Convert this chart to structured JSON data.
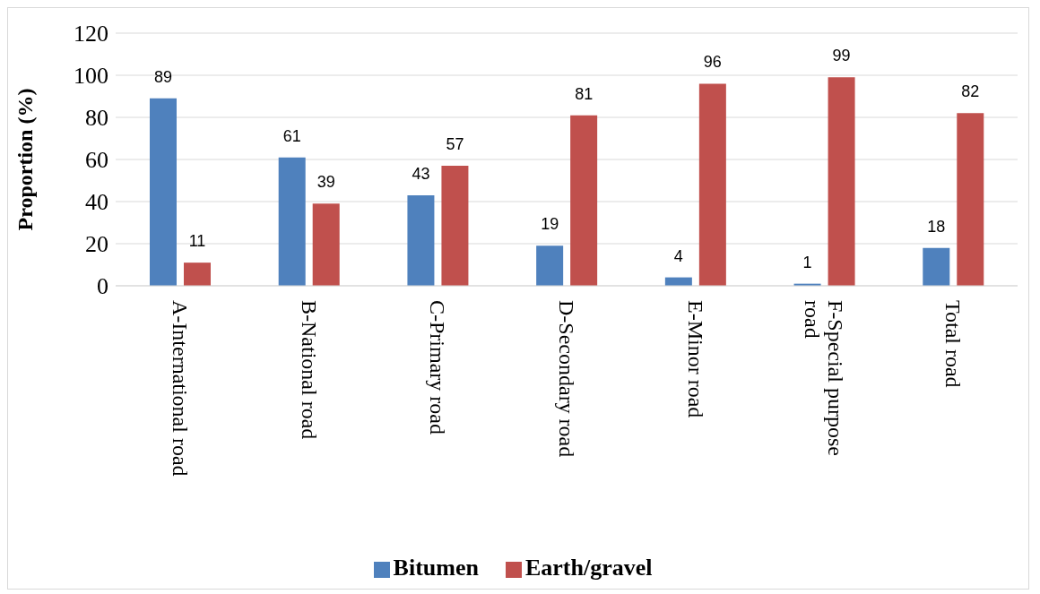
{
  "chart_data": {
    "type": "bar",
    "ylabel": "Proportion (%)",
    "categories": [
      "A-International road",
      "B-National road",
      "C-Primary road",
      "D-Secondary road",
      "E-Minor road",
      "F-Special purpose road",
      "Total road"
    ],
    "series": [
      {
        "name": "Bitumen",
        "color": "#4f81bd",
        "values": [
          89,
          61,
          43,
          19,
          4,
          1,
          18
        ]
      },
      {
        "name": "Earth/gravel",
        "color": "#c0504d",
        "values": [
          11,
          39,
          57,
          81,
          96,
          99,
          82
        ]
      }
    ],
    "ylim": [
      0,
      120
    ],
    "yticks": [
      0,
      20,
      40,
      60,
      80,
      100,
      120
    ],
    "grid": "y",
    "legend": "bottom",
    "data_labels": true
  }
}
